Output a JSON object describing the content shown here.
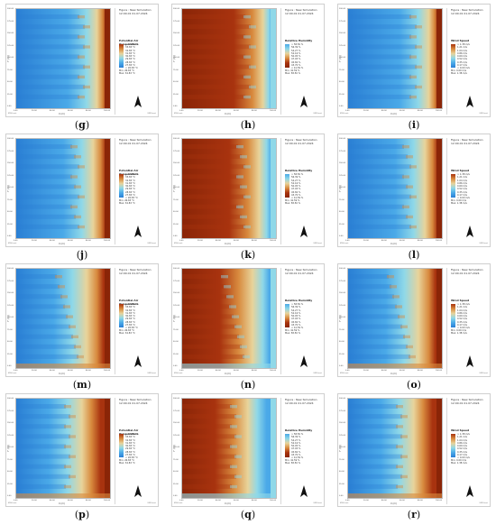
{
  "panels": [
    {
      "id": "g",
      "label": "g",
      "kind": "temp",
      "mode": "edge",
      "header": "Figure : New Simulation",
      "time": "12:00.01 01.07.2024",
      "legend_title": "Potential Air Temperature",
      "min": "Min: 26.83 °C",
      "max": "Max: 34.83 °C"
    },
    {
      "id": "h",
      "label": "h",
      "kind": "hum",
      "mode": "edge",
      "header": "Figure : New Simulation",
      "time": "12:00.01 01.07.2024",
      "legend_title": "Relative Humidity",
      "min": "Min: 41.59 %",
      "max": "Max: 58.50 %"
    },
    {
      "id": "i",
      "label": "i",
      "kind": "wind",
      "mode": "edge",
      "header": "Figure : New Simulation",
      "time": "12:00.01 01.07.2024",
      "legend_title": "Wind Speed",
      "min": "Min: 0.00 m/s",
      "max": "Max: 1.38 m/s"
    },
    {
      "id": "j",
      "label": "j",
      "kind": "temp",
      "mode": "mid",
      "header": "Figure : New Simulation",
      "time": "12:00.01 01.07.2024",
      "legend_title": "Potential Air Temperature",
      "min": "Min: 26.83 °C",
      "max": "Max: 34.83 °C"
    },
    {
      "id": "k",
      "label": "k",
      "kind": "hum",
      "mode": "mid",
      "header": "Figure : New Simulation",
      "time": "12:00.01 01.07.2024",
      "legend_title": "Relative Humidity",
      "min": "Min: 41.59 %",
      "max": "Max: 58.50 %"
    },
    {
      "id": "l",
      "label": "l",
      "kind": "wind",
      "mode": "mid",
      "header": "Figure : New Simulation",
      "time": "12:00.01 01.07.2024",
      "legend_title": "Wind Speed",
      "min": "Min: 0.00 m/s",
      "max": "Max: 1.38 m/s"
    },
    {
      "id": "m",
      "label": "m",
      "kind": "temp",
      "mode": "fan",
      "header": "Figure : New Simulation",
      "time": "12:00.01 01.07.2024",
      "legend_title": "Potential Air Temperature",
      "min": "Min: 26.83 °C",
      "max": "Max: 34.83 °C"
    },
    {
      "id": "n",
      "label": "n",
      "kind": "hum",
      "mode": "fan",
      "header": "Figure : New Simulation",
      "time": "12:00.01 01.07.2024",
      "legend_title": "Relative Humidity",
      "min": "Min: 41.59 %",
      "max": "Max: 58.50 %"
    },
    {
      "id": "o",
      "label": "o",
      "kind": "wind",
      "mode": "fan",
      "header": "Figure : New Simulation",
      "time": "12:00.01 01.07.2024",
      "legend_title": "Wind Speed",
      "min": "Min: 0.00 m/s",
      "max": "Max: 1.38 m/s"
    },
    {
      "id": "p",
      "label": "p",
      "kind": "temp",
      "mode": "wide",
      "header": "Figure : New Simulation",
      "time": "12:00.01 01.07.2024",
      "legend_title": "Potential Air Temperature",
      "min": "Min: 26.83 °C",
      "max": "Max: 34.83 °C"
    },
    {
      "id": "q",
      "label": "q",
      "kind": "hum",
      "mode": "wide",
      "header": "Figure : New Simulation",
      "time": "12:00.01 01.07.2024",
      "legend_title": "Relative Humidity",
      "min": "Min: 41.59 %",
      "max": "Max: 58.50 %"
    },
    {
      "id": "r",
      "label": "r",
      "kind": "wind",
      "mode": "wide",
      "header": "Figure : New Simulation",
      "time": "12:00.01 01.07.2024",
      "legend_title": "Wind Speed",
      "min": "Min: 0.00 m/s",
      "max": "Max: 1.38 m/s"
    }
  ],
  "legend_ticks": {
    "temp": [
      "< 26.83 °C",
      "27.83 °C",
      "28.83 °C",
      "29.83 °C",
      "30.83 °C",
      "31.83 °C",
      "32.83 °C",
      "33.83 °C",
      "> 34.83 °C"
    ],
    "hum": [
      "< 41.59 %",
      "43.70 %",
      "45.82 %",
      "47.93 %",
      "50.05 %",
      "52.16 %",
      "54.27 %",
      "56.39 %",
      "> 58.50 %"
    ],
    "wind": [
      "< 0.00 m/s",
      "0.17 m/s",
      "0.35 m/s",
      "0.52 m/s",
      "0.69 m/s",
      "0.86 m/s",
      "1.04 m/s",
      "1.21 m/s",
      "> 1.38 m/s"
    ]
  },
  "y_axis_label": "Y (m)",
  "x_axis_label": "X (m)",
  "y_ticks": [
    "200.00",
    "175.00",
    "150.00",
    "125.00",
    "100.00",
    "75.00",
    "50.00",
    "25.00",
    "0.00"
  ],
  "x_ticks": [
    "0.00",
    "20.00",
    "40.00",
    "60.00",
    "80.00",
    "100.00"
  ],
  "credit_left": "ENVI-met",
  "credit_right": "ENVI-met",
  "colors": {
    "blue_deep": "#2a7fd4",
    "blue": "#4aa9e8",
    "cyan": "#8fd8e8",
    "sand": "#e8d39a",
    "orange": "#d88a3e",
    "brown": "#a8330f",
    "dark_brown": "#8a2507"
  }
}
